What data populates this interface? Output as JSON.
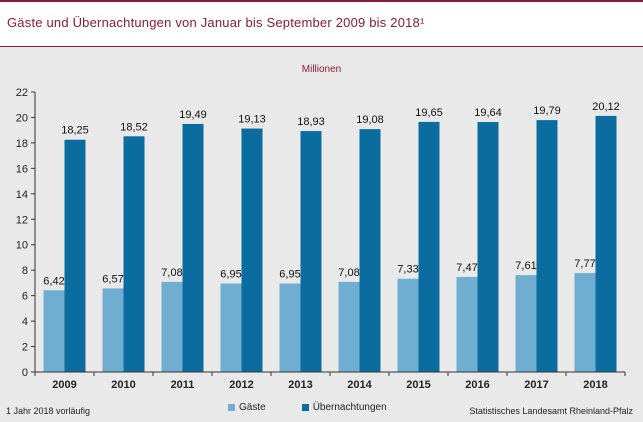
{
  "title": "Gäste und Übernachtungen von Januar bis September 2009 bis 2018¹",
  "footnote": "1 Jahr 2018 vorläufig",
  "source": "Statistisches Landesamt Rheinland-Pfalz",
  "colors": {
    "title": "#8b1a3a",
    "gaeste": "#6faed0",
    "uebernachtungen": "#0a6c9f",
    "panel": "#e9e9e9"
  },
  "chart_data": {
    "type": "bar",
    "unit_label": "Millionen",
    "categories": [
      "2009",
      "2010",
      "2011",
      "2012",
      "2013",
      "2014",
      "2015",
      "2016",
      "2017",
      "2018"
    ],
    "series": [
      {
        "name": "Gäste",
        "values": [
          6.42,
          6.57,
          7.08,
          6.95,
          6.95,
          7.08,
          7.33,
          7.47,
          7.61,
          7.77
        ]
      },
      {
        "name": "Übernachtungen",
        "values": [
          18.25,
          18.52,
          19.49,
          19.13,
          18.93,
          19.08,
          19.65,
          19.64,
          19.79,
          20.12
        ]
      }
    ],
    "ylim": [
      0,
      22
    ],
    "yticks": [
      0,
      2,
      4,
      6,
      8,
      10,
      12,
      14,
      16,
      18,
      20,
      22
    ],
    "legend_position": "bottom",
    "decimal_separator": ","
  }
}
